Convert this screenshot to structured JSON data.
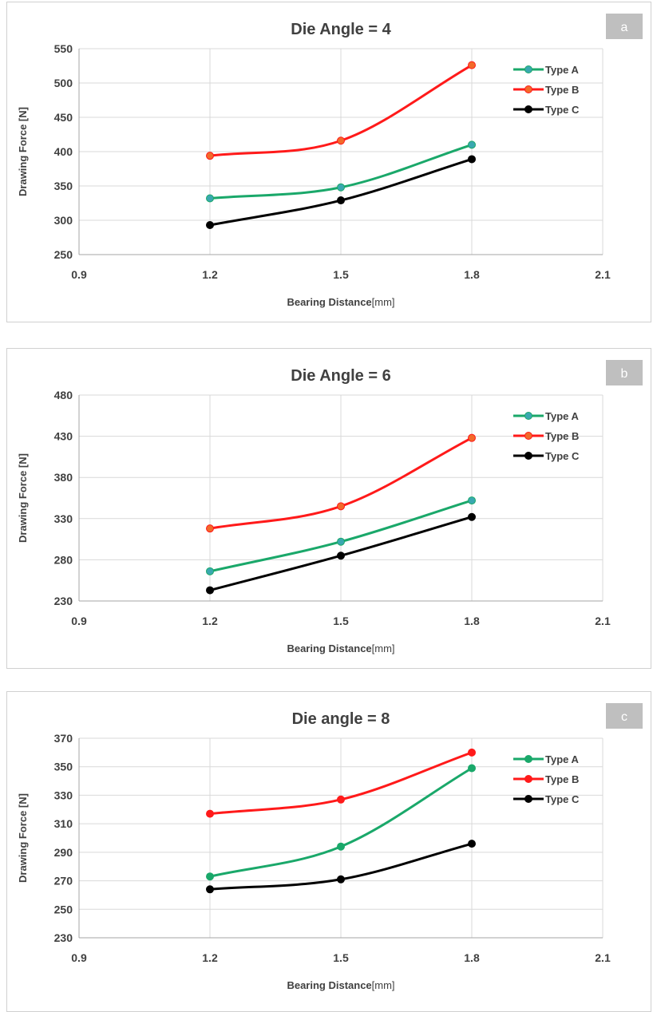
{
  "chart_data": [
    {
      "type": "line",
      "panel_label": "a",
      "title": "Die Angle = 4",
      "xlabel_main": "Bearing Distance",
      "xlabel_unit": "[mm]",
      "ylabel": "Drawing Force [N]",
      "x": [
        1.2,
        1.5,
        1.8
      ],
      "xlim": [
        0.9,
        2.1
      ],
      "xticks": [
        0.9,
        1.2,
        1.5,
        1.8,
        2.1
      ],
      "xtick_labels": [
        "0.9",
        "1.2",
        "1.5",
        "1.8",
        "2.1"
      ],
      "ylim": [
        250,
        550
      ],
      "yticks": [
        250,
        300,
        350,
        400,
        450,
        500,
        550
      ],
      "ytick_labels": [
        "250",
        "300",
        "350",
        "400",
        "450",
        "500",
        "550"
      ],
      "grid": true,
      "legend_position": "top-right",
      "series": [
        {
          "name": "Type A",
          "color": "#1aa86a",
          "marker_color": "#3aa8b0",
          "values": [
            332,
            348,
            410
          ]
        },
        {
          "name": "Type B",
          "color": "#ff1a1a",
          "marker_color": "#f26a2a",
          "values": [
            394,
            416,
            526
          ]
        },
        {
          "name": "Type C",
          "color": "#000000",
          "marker_color": "#000000",
          "values": [
            293,
            329,
            389
          ]
        }
      ]
    },
    {
      "type": "line",
      "panel_label": "b",
      "title": "Die Angle = 6",
      "xlabel_main": "Bearing Distance",
      "xlabel_unit": "[mm]",
      "ylabel": "Drawing Force [N]",
      "x": [
        1.2,
        1.5,
        1.8
      ],
      "xlim": [
        0.9,
        2.1
      ],
      "xticks": [
        0.9,
        1.2,
        1.5,
        1.8,
        2.1
      ],
      "xtick_labels": [
        "0.9",
        "1.2",
        "1.5",
        "1.8",
        "2.1"
      ],
      "ylim": [
        230,
        480
      ],
      "yticks": [
        230,
        280,
        330,
        380,
        430,
        480
      ],
      "ytick_labels": [
        "230",
        "280",
        "330",
        "380",
        "430",
        "480"
      ],
      "grid": true,
      "legend_position": "top-right",
      "series": [
        {
          "name": "Type A",
          "color": "#1aa86a",
          "marker_color": "#3aa8b0",
          "values": [
            266,
            302,
            352
          ]
        },
        {
          "name": "Type B",
          "color": "#ff1a1a",
          "marker_color": "#f26a2a",
          "values": [
            318,
            345,
            428
          ]
        },
        {
          "name": "Type C",
          "color": "#000000",
          "marker_color": "#000000",
          "values": [
            243,
            285,
            332
          ]
        }
      ]
    },
    {
      "type": "line",
      "panel_label": "c",
      "title": "Die angle = 8",
      "xlabel_main": "Bearing Distance",
      "xlabel_unit": "[mm]",
      "ylabel": "Drawing Force [N]",
      "x": [
        1.2,
        1.5,
        1.8
      ],
      "xlim": [
        0.9,
        2.1
      ],
      "xticks": [
        0.9,
        1.2,
        1.5,
        1.8,
        2.1
      ],
      "xtick_labels": [
        "0.9",
        "1.2",
        "1.5",
        "1.8",
        "2.1"
      ],
      "ylim": [
        230,
        370
      ],
      "yticks": [
        230,
        250,
        270,
        290,
        310,
        330,
        350,
        370
      ],
      "ytick_labels": [
        "230",
        "250",
        "270",
        "290",
        "310",
        "330",
        "350",
        "370"
      ],
      "grid": true,
      "legend_position": "top-right",
      "series": [
        {
          "name": "Type A",
          "color": "#1aa86a",
          "marker_color": "#1aa86a",
          "values": [
            273,
            294,
            349
          ]
        },
        {
          "name": "Type B",
          "color": "#ff1a1a",
          "marker_color": "#ff1a1a",
          "values": [
            317,
            327,
            360
          ]
        },
        {
          "name": "Type C",
          "color": "#000000",
          "marker_color": "#000000",
          "values": [
            264,
            271,
            296
          ]
        }
      ]
    }
  ]
}
